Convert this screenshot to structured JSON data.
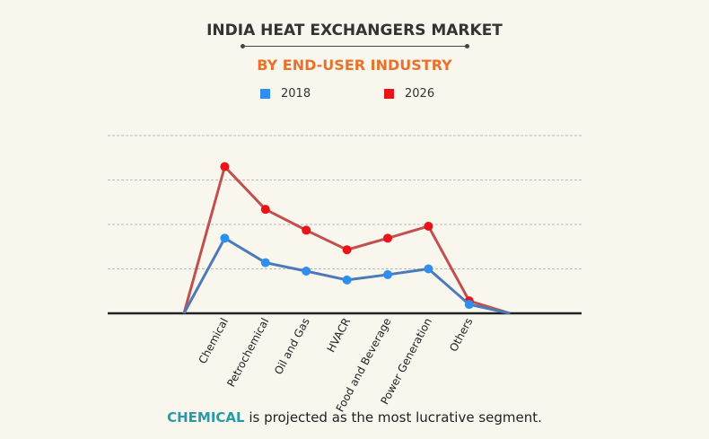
{
  "chart_data": {
    "type": "line",
    "title": "INDIA HEAT EXCHANGERS MARKET",
    "subtitle": "BY END-USER INDUSTRY",
    "categories": [
      "",
      "Chemical",
      "Petrochemical",
      "Oil and Gas",
      "HVACR",
      "Food and Beverage",
      "Power Generation",
      "Others",
      ""
    ],
    "series": [
      {
        "name": "2018",
        "color": "#2e8fef",
        "line_color": "#4a7ab8",
        "values": [
          0,
          1.69,
          1.14,
          0.95,
          0.75,
          0.87,
          1.0,
          0.2,
          0
        ]
      },
      {
        "name": "2026",
        "color": "#e8141a",
        "line_color": "#c0504d",
        "values": [
          0,
          3.3,
          2.34,
          1.87,
          1.43,
          1.69,
          1.96,
          0.28,
          0
        ]
      }
    ],
    "ylim": [
      0,
      4
    ],
    "grid": true,
    "legend": "top",
    "xlabel": "",
    "ylabel": ""
  },
  "footer": {
    "highlight": "CHEMICAL",
    "text": " is projected as the most lucrative segment."
  }
}
